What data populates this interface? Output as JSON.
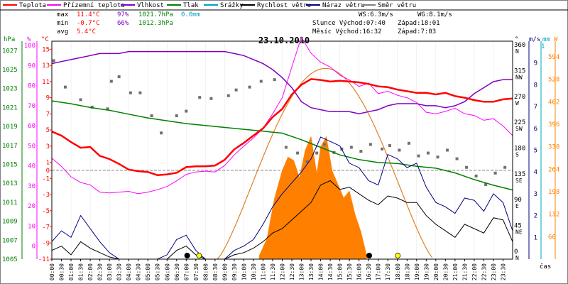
{
  "chart_data": {
    "type": "line",
    "title": "23.10.2010",
    "legend": [
      {
        "key": "teplota",
        "label": "Teplota",
        "color": "#ff0000"
      },
      {
        "key": "pocitova",
        "label": "Přízemní teplota",
        "color": "#ff00ff"
      },
      {
        "key": "vlhkost",
        "label": "Vlhkost",
        "color": "#8000c0"
      },
      {
        "key": "tlak",
        "label": "Tlak",
        "color": "#008000"
      },
      {
        "key": "srazky",
        "label": "Srážky",
        "color": "#00a0c0"
      },
      {
        "key": "rychlost",
        "label": "Rychlost větru",
        "color": "#000000"
      },
      {
        "key": "naraz",
        "label": "Náraz větru",
        "color": "#000080"
      },
      {
        "key": "smer",
        "label": "Směr větru",
        "color": "#808080"
      }
    ],
    "stats": {
      "max_label": "max",
      "min_label": "min",
      "avg_label": "avg",
      "max_temp": "11.4°C",
      "max_hum": "97%",
      "max_press": "1021.7hPa",
      "max_rain": "0.0mm",
      "min_temp": "-0.7°C",
      "min_hum": "66%",
      "min_press": "1012.3hPa",
      "avg_temp": "5.4°C"
    },
    "info": {
      "ws": "WS:6.3m/s",
      "wg": "WG:8.1m/s",
      "sun": "Slunce Východ:07:40",
      "sunset": "Západ:18:01",
      "moon": "Měsíc  Východ:16:32",
      "moonset": "Západ:7:03"
    },
    "axis_units": {
      "hpa": "hPa",
      "pct": "%",
      "degc": "°C",
      "deg": "°",
      "ms": "m/s",
      "mm": "mm",
      "wm2": "W",
      "cas": "čas"
    },
    "axes": {
      "hpa": {
        "ticks": [
          "1027",
          "1025",
          "1023",
          "1021",
          "1019",
          "1017",
          "1015",
          "1013",
          "1011",
          "1009",
          "1007",
          "1005"
        ]
      },
      "pct": {
        "ticks": [
          "100",
          "90",
          "80",
          "70",
          "60",
          "50",
          "40",
          "30",
          "20",
          "10",
          "0"
        ]
      },
      "degc": {
        "ticks": [
          "15",
          "13",
          "11",
          "9",
          "7",
          "5",
          "3",
          "1",
          "0",
          "-1",
          "-3",
          "-5",
          "-7",
          "-9",
          "-11"
        ]
      },
      "dir": {
        "ticks": [
          "360",
          "315",
          "270",
          "225",
          "180",
          "135",
          "90",
          "45",
          "0"
        ],
        "names": [
          "N",
          "NW",
          "W",
          "SW",
          "S",
          "SE",
          "E",
          "NE",
          "N"
        ]
      },
      "ms": {
        "ticks": [
          "9",
          "8",
          "7",
          "6",
          "5",
          "4",
          "3",
          "2",
          "1"
        ]
      },
      "mm": {
        "ticks": [
          "1"
        ]
      },
      "wm2": {
        "ticks": [
          "594",
          "528",
          "462",
          "396",
          "330",
          "264",
          "198",
          "132",
          "66"
        ]
      }
    },
    "x_ticks": [
      "00:00",
      "00:30",
      "01:00",
      "01:30",
      "02:00",
      "02:30",
      "03:00",
      "03:30",
      "04:00",
      "04:30",
      "05:00",
      "05:30",
      "06:00",
      "06:30",
      "07:00",
      "07:30",
      "08:00",
      "08:30",
      "09:00",
      "09:30",
      "10:00",
      "10:30",
      "11:00",
      "11:30",
      "12:00",
      "12:30",
      "13:00",
      "13:30",
      "14:00",
      "14:30",
      "15:00",
      "15:30",
      "16:00",
      "16:30",
      "17:00",
      "17:30",
      "18:00",
      "18:30",
      "19:00",
      "19:30",
      "20:00",
      "20:30",
      "21:00",
      "21:30",
      "22:00",
      "22:30",
      "23:00",
      "23:30"
    ],
    "series": {
      "teplota": {
        "x": [
          0,
          0.5,
          1,
          1.5,
          2,
          2.5,
          3,
          3.5,
          4,
          4.5,
          5,
          5.5,
          6,
          6.5,
          7,
          7.5,
          8,
          8.5,
          9,
          9.5,
          10,
          10.5,
          11,
          11.5,
          12,
          12.5,
          13,
          13.5,
          14,
          14.5,
          15,
          15.5,
          16,
          16.5,
          17,
          17.5,
          18,
          18.5,
          19,
          19.5,
          20,
          20.5,
          21,
          21.5,
          22,
          22.5,
          23,
          23.5,
          24
        ],
        "y": [
          4.8,
          4.3,
          3.5,
          2.8,
          2.9,
          1.8,
          1.4,
          0.8,
          0.1,
          -0.1,
          -0.2,
          -0.6,
          -0.5,
          -0.3,
          0.4,
          0.5,
          0.5,
          0.6,
          1.3,
          2.6,
          3.4,
          4.3,
          5.2,
          6.6,
          7.6,
          9.4,
          10.6,
          11.3,
          11.2,
          11.0,
          11.1,
          11.0,
          10.9,
          10.7,
          10.4,
          10.3,
          10.0,
          9.8,
          9.6,
          9.6,
          9.4,
          9.6,
          9.2,
          9.0,
          8.7,
          8.5,
          8.5,
          8.8,
          8.9
        ]
      },
      "pocitova": {
        "x": [
          0,
          0.5,
          1,
          1.5,
          2,
          2.5,
          3,
          3.5,
          4,
          4.5,
          5,
          5.5,
          6,
          6.5,
          7,
          7.5,
          8,
          8.5,
          9,
          9.5,
          10,
          10.5,
          11,
          11.5,
          12,
          12.5,
          13,
          13.5,
          14,
          14.5,
          15,
          15.5,
          16,
          16.5,
          17,
          17.5,
          18,
          18.5,
          19,
          19.5,
          20,
          20.5,
          21,
          21.5,
          22,
          22.5,
          23,
          23.5,
          24
        ],
        "y": [
          1.5,
          0.5,
          -0.8,
          -1.5,
          -1.8,
          -2.7,
          -2.8,
          -2.7,
          -2.6,
          -2.9,
          -2.7,
          -2.4,
          -2.0,
          -1.3,
          -0.5,
          -0.2,
          -0.1,
          -0.2,
          0.6,
          1.9,
          3.0,
          4.0,
          5.2,
          7.0,
          9.0,
          12.8,
          16.5,
          14.5,
          13.4,
          12.8,
          11.8,
          11.2,
          10.4,
          10.8,
          9.5,
          9.8,
          9.3,
          9.0,
          8.4,
          7.2,
          7.0,
          7.3,
          7.7,
          7.0,
          6.8,
          6.2,
          6.4,
          5.5,
          4.3
        ]
      },
      "vlhkost": {
        "x": [
          0,
          0.5,
          1,
          1.5,
          2,
          2.5,
          3,
          3.5,
          4,
          4.5,
          5,
          5.5,
          6,
          6.5,
          7,
          7.5,
          8,
          8.5,
          9,
          9.5,
          10,
          10.5,
          11,
          11.5,
          12,
          12.5,
          13,
          13.5,
          14,
          14.5,
          15,
          15.5,
          16,
          16.5,
          17,
          17.5,
          18,
          18.5,
          19,
          19.5,
          20,
          20.5,
          21,
          21.5,
          22,
          22.5,
          23,
          23.5,
          24
        ],
        "y": [
          91,
          92,
          93,
          94,
          95,
          96,
          96,
          96,
          97,
          97,
          97,
          97,
          97,
          97,
          97,
          97,
          97,
          97,
          97,
          96,
          95,
          93,
          91,
          88,
          84,
          79,
          72,
          69,
          68,
          67,
          67,
          67,
          66,
          67,
          68,
          70,
          71,
          71,
          71,
          70,
          70,
          69,
          70,
          72,
          76,
          79,
          82,
          83,
          83
        ]
      },
      "tlak": {
        "x": [
          0,
          1,
          2,
          3,
          4,
          5,
          6,
          7,
          8,
          9,
          10,
          11,
          12,
          13,
          14,
          15,
          16,
          17,
          18,
          19,
          20,
          21,
          22,
          23,
          24
        ],
        "y": [
          1021.7,
          1021.4,
          1021.0,
          1020.7,
          1020.3,
          1019.9,
          1019.6,
          1019.3,
          1019.1,
          1018.9,
          1018.7,
          1018.5,
          1018.3,
          1017.6,
          1016.8,
          1016.0,
          1015.5,
          1015.2,
          1015.1,
          1014.8,
          1014.6,
          1014.1,
          1013.4,
          1012.8,
          1012.3
        ]
      },
      "rychlost": {
        "x": [
          0,
          0.5,
          1,
          1.5,
          2,
          2.5,
          3,
          3.5,
          4,
          4.5,
          5,
          5.5,
          6,
          6.5,
          7,
          7.5,
          8,
          8.5,
          9,
          9.5,
          10,
          10.5,
          11,
          11.5,
          12,
          12.5,
          13,
          13.5,
          14,
          14.5,
          15,
          15.5,
          16,
          16.5,
          17,
          17.5,
          18,
          18.5,
          19,
          19.5,
          20,
          20.5,
          21,
          21.5,
          22,
          22.5,
          23,
          23.5,
          24
        ],
        "y": [
          0.4,
          0.6,
          0.2,
          0.8,
          0.5,
          0.3,
          0.1,
          0,
          0,
          0,
          0,
          0,
          0,
          0.4,
          0.6,
          0.2,
          0,
          0,
          0,
          0.2,
          0.3,
          0.5,
          0.8,
          1.2,
          1.4,
          1.8,
          2.2,
          2.6,
          3.4,
          3.6,
          3.2,
          3.3,
          3.0,
          2.7,
          2.5,
          2.9,
          2.8,
          2.6,
          2.6,
          2.0,
          1.6,
          1.3,
          1.0,
          1.6,
          1.4,
          1.2,
          1.9,
          1.8,
          0.8
        ]
      },
      "naraz": {
        "x": [
          0,
          0.5,
          1,
          1.5,
          2,
          2.5,
          3,
          3.5,
          4,
          4.5,
          5,
          5.5,
          6,
          6.5,
          7,
          7.5,
          8,
          8.5,
          9,
          9.5,
          10,
          10.5,
          11,
          11.5,
          12,
          12.5,
          13,
          13.5,
          14,
          14.5,
          15,
          15.5,
          16,
          16.5,
          17,
          17.5,
          18,
          18.5,
          19,
          19.5,
          20,
          20.5,
          21,
          21.5,
          22,
          22.5,
          23,
          23.5,
          24
        ],
        "y": [
          0.8,
          1.3,
          1.0,
          2.0,
          1.4,
          0.8,
          0.3,
          0,
          0,
          0,
          0,
          0,
          0.2,
          0.9,
          1.1,
          0.4,
          0,
          0,
          0,
          0.4,
          0.6,
          0.9,
          1.6,
          2.4,
          3.0,
          3.5,
          4.0,
          4.6,
          5.6,
          5.4,
          5.2,
          4.4,
          4.2,
          3.6,
          3.4,
          4.8,
          4.6,
          4.2,
          4.4,
          3.3,
          2.6,
          2.4,
          2.1,
          2.8,
          2.7,
          2.2,
          3.0,
          2.6,
          1.3
        ]
      },
      "smer_teckovane": {
        "points": [
          [
            0.1,
            336
          ],
          [
            0.7,
            290
          ],
          [
            1.5,
            268
          ],
          [
            2.1,
            255
          ],
          [
            2.9,
            252
          ],
          [
            3.1,
            300
          ],
          [
            3.5,
            308
          ],
          [
            4.1,
            280
          ],
          [
            4.6,
            280
          ],
          [
            5.2,
            240
          ],
          [
            5.7,
            210
          ],
          [
            6.5,
            240
          ],
          [
            7.0,
            248
          ],
          [
            7.7,
            272
          ],
          [
            8.3,
            270
          ],
          [
            9.2,
            275
          ],
          [
            9.6,
            285
          ],
          [
            10.3,
            290
          ],
          [
            10.9,
            300
          ],
          [
            11.6,
            303
          ],
          [
            12.2,
            185
          ],
          [
            12.8,
            175
          ],
          [
            13.3,
            160
          ],
          [
            13.8,
            175
          ],
          [
            14.2,
            190
          ],
          [
            14.7,
            176
          ],
          [
            15.1,
            182
          ],
          [
            15.6,
            185
          ],
          [
            16.1,
            178
          ],
          [
            16.6,
            190
          ],
          [
            17.2,
            182
          ],
          [
            17.6,
            188
          ],
          [
            18.1,
            180
          ],
          [
            18.6,
            192
          ],
          [
            19.1,
            170
          ],
          [
            19.6,
            175
          ],
          [
            20.1,
            168
          ],
          [
            20.6,
            180
          ],
          [
            21.1,
            165
          ],
          [
            21.6,
            150
          ],
          [
            22.1,
            135
          ],
          [
            22.6,
            120
          ],
          [
            23.1,
            140
          ],
          [
            23.6,
            150
          ]
        ]
      },
      "zareni": {
        "x": [
          10.8,
          11.2,
          11.6,
          12.0,
          12.3,
          12.6,
          12.9,
          13.2,
          13.5,
          13.8,
          14.0,
          14.3,
          14.6,
          14.9,
          15.2,
          15.5,
          15.8,
          16.1,
          16.4
        ],
        "y": [
          10,
          60,
          180,
          260,
          300,
          290,
          240,
          320,
          360,
          250,
          330,
          360,
          260,
          220,
          180,
          200,
          130,
          80,
          10
        ]
      },
      "zareni_teoret": {
        "peak_time": 14.3,
        "peak_value": 560,
        "start": 8.6,
        "end": 19.9
      }
    },
    "markers": {
      "sunrise_h": 7.67,
      "sunset_h": 18.02,
      "moonrise_h": 16.53,
      "moonset_h": 7.05
    }
  }
}
